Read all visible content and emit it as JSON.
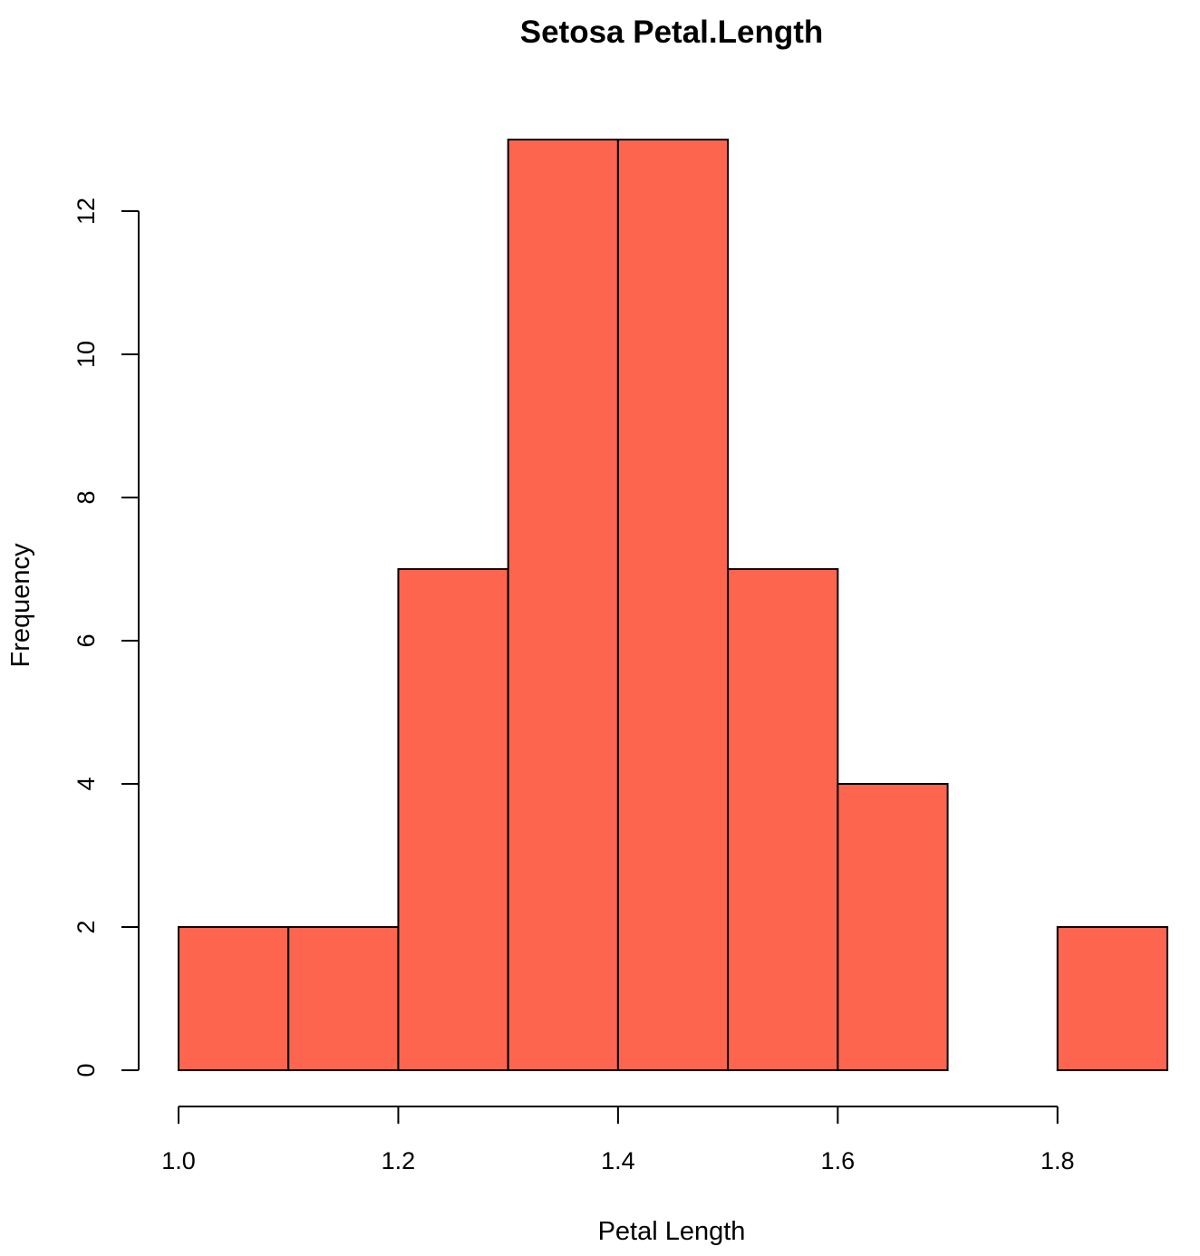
{
  "chart_data": {
    "type": "bar",
    "subtype": "histogram",
    "title": "Setosa Petal.Length",
    "xlabel": "Petal Length",
    "ylabel": "Frequency",
    "bins": [
      {
        "from": 1.0,
        "to": 1.1,
        "count": 2
      },
      {
        "from": 1.1,
        "to": 1.2,
        "count": 2
      },
      {
        "from": 1.2,
        "to": 1.3,
        "count": 7
      },
      {
        "from": 1.3,
        "to": 1.4,
        "count": 13
      },
      {
        "from": 1.4,
        "to": 1.5,
        "count": 13
      },
      {
        "from": 1.5,
        "to": 1.6,
        "count": 7
      },
      {
        "from": 1.6,
        "to": 1.7,
        "count": 4
      },
      {
        "from": 1.7,
        "to": 1.8,
        "count": 0
      },
      {
        "from": 1.8,
        "to": 1.9,
        "count": 2
      }
    ],
    "xlim": [
      1.0,
      1.9
    ],
    "ylim": [
      0,
      13
    ],
    "x_ticks": [
      1.0,
      1.2,
      1.4,
      1.6,
      1.8
    ],
    "x_tick_labels": [
      "1.0",
      "1.2",
      "1.4",
      "1.6",
      "1.8"
    ],
    "y_ticks": [
      0,
      2,
      4,
      6,
      8,
      10,
      12
    ],
    "y_tick_labels": [
      "0",
      "2",
      "4",
      "6",
      "8",
      "10",
      "12"
    ],
    "bar_color": "#fe654f",
    "grid": false,
    "legend": "none"
  }
}
